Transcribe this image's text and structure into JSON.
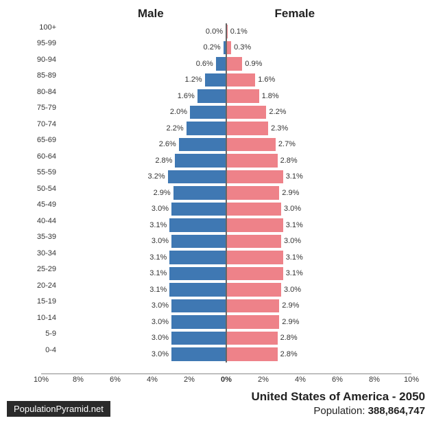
{
  "type": "population-pyramid",
  "male_label": "Male",
  "female_label": "Female",
  "male_color": "#3f78b3",
  "female_color": "#ee8289",
  "max_percent": 10,
  "bar_height": 23.5,
  "age_groups": [
    {
      "label": "100+",
      "male": 0.0,
      "female": 0.1
    },
    {
      "label": "95-99",
      "male": 0.2,
      "female": 0.3
    },
    {
      "label": "90-94",
      "male": 0.6,
      "female": 0.9
    },
    {
      "label": "85-89",
      "male": 1.2,
      "female": 1.6
    },
    {
      "label": "80-84",
      "male": 1.6,
      "female": 1.8
    },
    {
      "label": "75-79",
      "male": 2.0,
      "female": 2.2
    },
    {
      "label": "70-74",
      "male": 2.2,
      "female": 2.3
    },
    {
      "label": "65-69",
      "male": 2.6,
      "female": 2.7
    },
    {
      "label": "60-64",
      "male": 2.8,
      "female": 2.8
    },
    {
      "label": "55-59",
      "male": 3.2,
      "female": 3.1
    },
    {
      "label": "50-54",
      "male": 2.9,
      "female": 2.9
    },
    {
      "label": "45-49",
      "male": 3.0,
      "female": 3.0
    },
    {
      "label": "40-44",
      "male": 3.1,
      "female": 3.1
    },
    {
      "label": "35-39",
      "male": 3.0,
      "female": 3.0
    },
    {
      "label": "30-34",
      "male": 3.1,
      "female": 3.1
    },
    {
      "label": "25-29",
      "male": 3.1,
      "female": 3.1
    },
    {
      "label": "20-24",
      "male": 3.1,
      "female": 3.0
    },
    {
      "label": "15-19",
      "male": 3.0,
      "female": 2.9
    },
    {
      "label": "10-14",
      "male": 3.0,
      "female": 2.9
    },
    {
      "label": "5-9",
      "male": 3.0,
      "female": 2.8
    },
    {
      "label": "0-4",
      "male": 3.0,
      "female": 2.8
    }
  ],
  "xticks": [
    10,
    8,
    6,
    4,
    2,
    0,
    2,
    4,
    6,
    8,
    10
  ],
  "title": "United States of America - 2050",
  "population_label": "Population: ",
  "population_value": "388,864,747",
  "source": "PopulationPyramid.net",
  "label_fontsize": 11,
  "header_fontsize": 17,
  "title_fontsize": 17,
  "axis_color": "#888888",
  "background_color": "#ffffff"
}
